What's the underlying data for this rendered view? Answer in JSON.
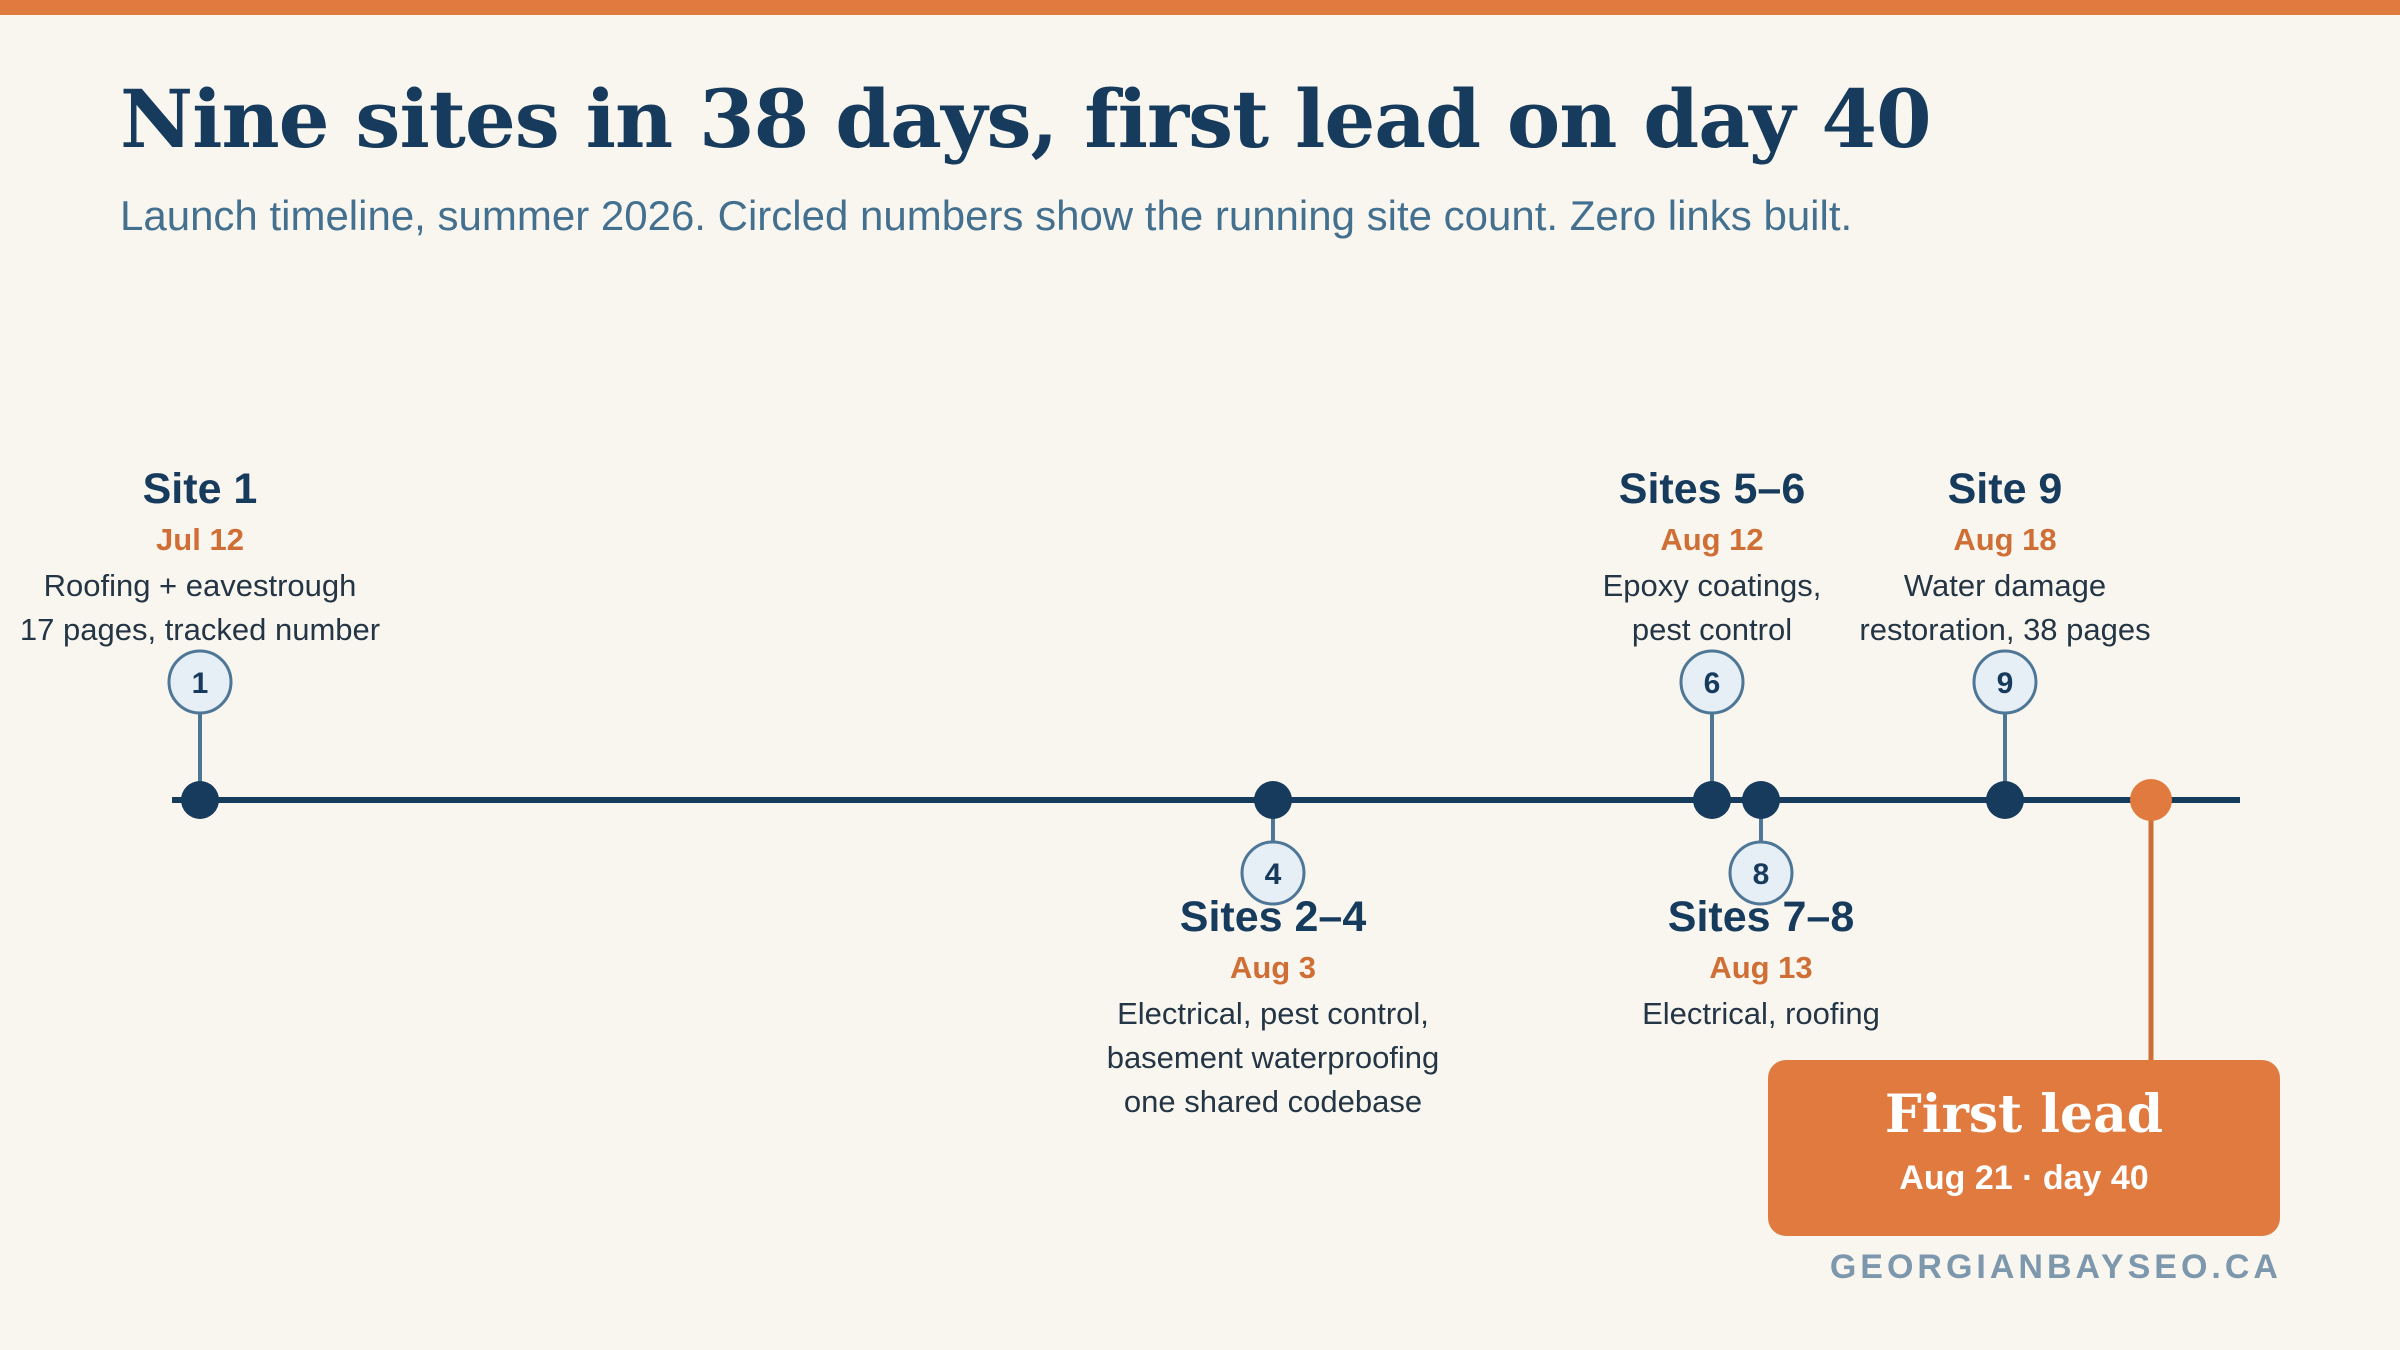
{
  "title": "Nine sites in 38 days, first lead on day 40",
  "subtitle": "Launch timeline, summer 2026. Circled numbers show the running site count. Zero links built.",
  "events": [
    {
      "id": "e1",
      "label": "Site 1",
      "date": "Jul 12",
      "desc": [
        "Roofing + eavestrough",
        "17 pages, tracked number"
      ],
      "count": "1",
      "position": "above"
    },
    {
      "id": "e2",
      "label": "Sites 2–4",
      "date": "Aug 3",
      "desc": [
        "Electrical, pest control,",
        "basement waterproofing",
        "one shared codebase"
      ],
      "count": "4",
      "position": "below"
    },
    {
      "id": "e3",
      "label": "Sites 5–6",
      "date": "Aug 12",
      "desc": [
        "Epoxy coatings,",
        "pest control"
      ],
      "count": "6",
      "position": "above"
    },
    {
      "id": "e4",
      "label": "Sites 7–8",
      "date": "Aug 13",
      "desc": [
        "Electrical, roofing"
      ],
      "count": "8",
      "position": "below"
    },
    {
      "id": "e5",
      "label": "Site 9",
      "date": "Aug 18",
      "desc": [
        "Water damage",
        "restoration, 38 pages"
      ],
      "count": "9",
      "position": "above"
    }
  ],
  "first_lead": {
    "title": "First lead",
    "date": "Aug 21 · day 40"
  },
  "footer": "GEORGIANBAYSEO.CA",
  "colors": {
    "navy": "#163b5c",
    "orange": "#e07a3f",
    "date_orange": "#cf6f35",
    "bubble_fill": "#e6eef6",
    "bubble_stroke": "#4e7696",
    "background": "#f9f6ef"
  }
}
